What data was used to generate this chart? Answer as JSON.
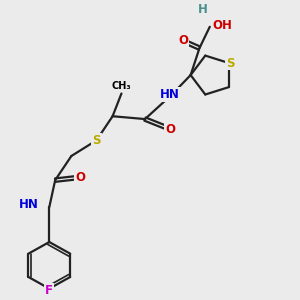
{
  "bg_color": "#ebebeb",
  "atom_colors": {
    "C": "#000000",
    "H": "#4a9090",
    "O": "#cc0000",
    "N": "#0000dd",
    "S": "#bbaa00",
    "F": "#cc00cc"
  },
  "bond_color": "#222222",
  "bond_lw": 1.6,
  "font_size_atom": 8.5,
  "font_size_small": 7.5,
  "xlim": [
    0,
    10
  ],
  "ylim": [
    0,
    10
  ]
}
